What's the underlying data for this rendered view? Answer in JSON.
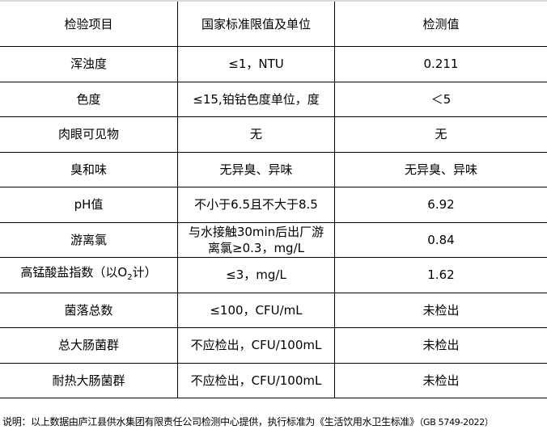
{
  "table": {
    "headers": [
      "检验项目",
      "国家标准限值及单位",
      "检测值"
    ],
    "rows": [
      {
        "item": "浑浊度",
        "limit": "≤1，NTU",
        "value": "0.211"
      },
      {
        "item": "色度",
        "limit": "≤15,铂钴色度单位，度",
        "value": "＜5"
      },
      {
        "item": "肉眼可见物",
        "limit": "无",
        "value": "无"
      },
      {
        "item": "臭和味",
        "limit": "无异臭、异味",
        "value": "无异臭、异味"
      },
      {
        "item": "pH值",
        "limit": "不小于6.5且不大于8.5",
        "value": "6.92"
      },
      {
        "item": "游离氯",
        "limit": "与水接触30min后出厂游离氯≥0.3，mg/L",
        "value": "0.84"
      },
      {
        "item_prefix": "高锰酸盐指数（以O",
        "item_sub": "2",
        "item_suffix": "计）",
        "limit": "≤3，mg/L",
        "value": "1.62"
      },
      {
        "item": "菌落总数",
        "limit": "≤100，CFU/mL",
        "value": "未检出"
      },
      {
        "item": "总大肠菌群",
        "limit": "不应检出，CFU/100mL",
        "value": "未检出"
      },
      {
        "item": "耐热大肠菌群",
        "limit": "不应检出，CFU/100mL",
        "value": "未检出"
      }
    ]
  },
  "note": {
    "text": "说明：以上数据由庐江县供水集团有限责任公司检测中心提供，执行标准为《生活饮用水卫生标准》",
    "standard": "（GB 5749-2022）"
  }
}
